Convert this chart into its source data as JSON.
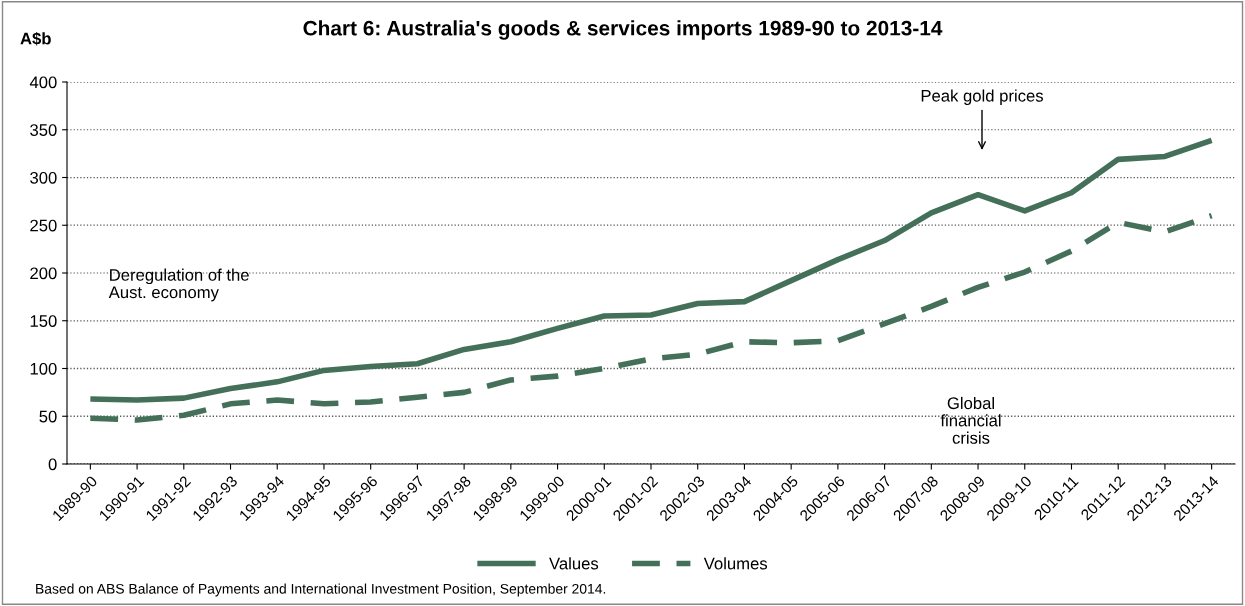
{
  "chart_data": {
    "type": "line",
    "title": "Chart 6: Australia's goods & services imports 1989-90 to 2013-14",
    "ylabel": "A$b",
    "categories": [
      "1989-90",
      "1990-91",
      "1991-92",
      "1992-93",
      "1993-94",
      "1994-95",
      "1995-96",
      "1996-97",
      "1997-98",
      "1998-99",
      "1999-00",
      "2000-01",
      "2001-02",
      "2002-03",
      "2003-04",
      "2004-05",
      "2005-06",
      "2006-07",
      "2007-08",
      "2008-09",
      "2009-10",
      "2010-11",
      "2011-12",
      "2012-13",
      "2013-14"
    ],
    "series": [
      {
        "name": "Values",
        "color": "#44705a",
        "line_style": "solid",
        "values": [
          68,
          67,
          69,
          79,
          86,
          98,
          102,
          105,
          120,
          128,
          142,
          155,
          156,
          168,
          170,
          192,
          214,
          234,
          263,
          282,
          265,
          284,
          319,
          322,
          339
        ]
      },
      {
        "name": "Volumes",
        "color": "#44705a",
        "line_style": "dashed",
        "values": [
          48,
          46,
          51,
          63,
          67,
          63,
          65,
          70,
          75,
          88,
          92,
          100,
          110,
          115,
          128,
          127,
          129,
          147,
          165,
          185,
          201,
          223,
          253,
          243,
          260
        ]
      }
    ],
    "ylim": [
      0,
      400
    ],
    "yticks": [
      0,
      50,
      100,
      150,
      200,
      250,
      300,
      350,
      400
    ],
    "grid": "y",
    "legend": "bottom",
    "marker": "none",
    "annotations": [
      "Peak gold prices",
      "Deregulation of the Aust. economy",
      "Global financial crisis",
      "Based on ABS Balance of Payments and International Investment Position, September 2014."
    ]
  }
}
